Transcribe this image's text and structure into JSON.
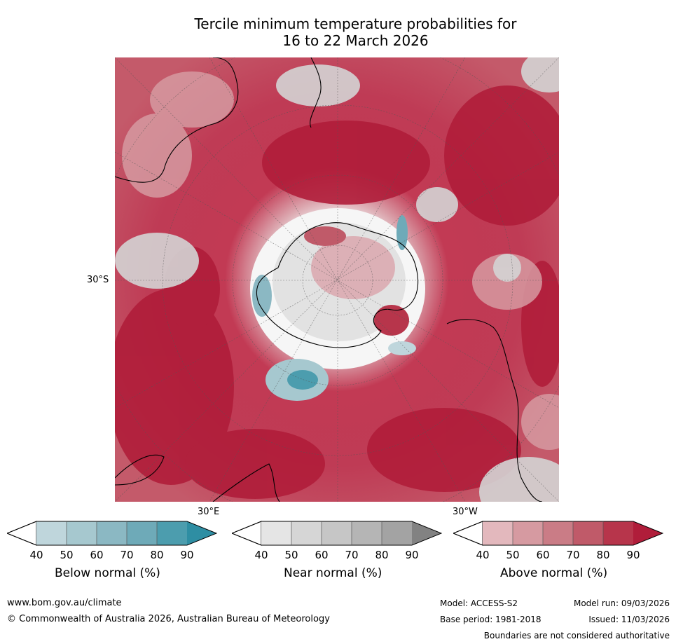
{
  "title_line1": "Tercile minimum temperature probabilities for",
  "title_line2": "16 to 22 March 2026",
  "lat_label": "30°S",
  "lon_labels": {
    "east": "30°E",
    "west": "30°W"
  },
  "colorbars": [
    {
      "title": "Below normal (%)",
      "ticks": [
        "40",
        "50",
        "60",
        "70",
        "80",
        "90"
      ],
      "colors": [
        "#bfd6dc",
        "#a6c8cf",
        "#8bb8c3",
        "#6eaab8",
        "#4c9dae",
        "#2e8ea3"
      ]
    },
    {
      "title": "Near normal (%)",
      "ticks": [
        "40",
        "50",
        "60",
        "70",
        "80",
        "90"
      ],
      "colors": [
        "#e5e5e5",
        "#d6d6d6",
        "#c6c6c6",
        "#b5b5b5",
        "#a3a3a3",
        "#828282"
      ]
    },
    {
      "title": "Above normal (%)",
      "ticks": [
        "40",
        "50",
        "60",
        "70",
        "80",
        "90"
      ],
      "colors": [
        "#e3b8bd",
        "#d69aa1",
        "#ca7c86",
        "#c05a69",
        "#b7354b",
        "#b01d3a"
      ]
    }
  ],
  "footer": {
    "website": "www.bom.gov.au/climate",
    "copyright": "© Commonwealth of Australia 2026, Australian Bureau of Meteorology",
    "model": "Model: ACCESS-S2",
    "model_run": "Model run: 09/03/2026",
    "base_period": "Base period: 1981-2018",
    "issued": "Issued: 11/03/2026",
    "disclaimer": "Boundaries are not considered authoritative"
  }
}
